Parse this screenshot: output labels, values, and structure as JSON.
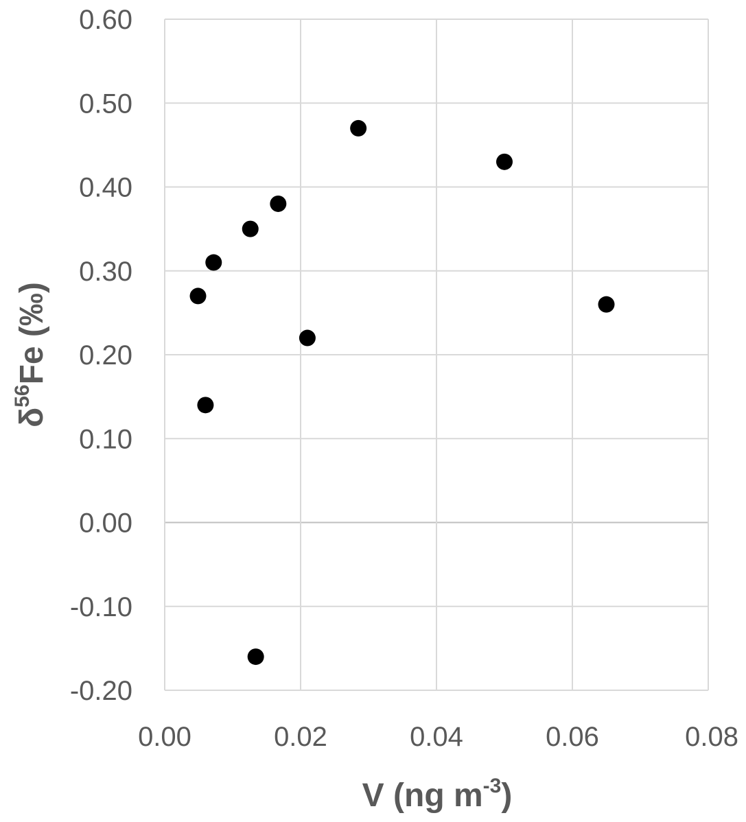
{
  "chart_data": {
    "type": "scatter",
    "title": "",
    "xlabel": "V (ng m-3)",
    "xlabel_parts": {
      "main": "V (ng m",
      "superscript": "-3",
      "tail": ")"
    },
    "ylabel": "δ56Fe (‰)",
    "ylabel_parts": {
      "main": "δ",
      "superscript": "56",
      "tail": "Fe (‰)"
    },
    "xlim": [
      0,
      0.08
    ],
    "ylim": [
      -0.2,
      0.6
    ],
    "xticks": [
      0.0,
      0.02,
      0.04,
      0.06,
      0.08
    ],
    "xtick_labels": [
      "0.00",
      "0.02",
      "0.04",
      "0.06",
      "0.08"
    ],
    "yticks": [
      -0.2,
      -0.1,
      0.0,
      0.1,
      0.2,
      0.3,
      0.4,
      0.5,
      0.6
    ],
    "ytick_labels": [
      "-0.20",
      "-0.10",
      "0.00",
      "0.10",
      "0.20",
      "0.30",
      "0.40",
      "0.50",
      "0.60"
    ],
    "grid": true,
    "legend": "none",
    "marker_color": "#000000",
    "grid_color": "#d9d9d9",
    "zero_line_color": "#bfbfbf",
    "text_color": "#595959",
    "series": [
      {
        "points": [
          {
            "x": 0.0049,
            "y": 0.27
          },
          {
            "x": 0.006,
            "y": 0.14
          },
          {
            "x": 0.0072,
            "y": 0.31
          },
          {
            "x": 0.0126,
            "y": 0.35
          },
          {
            "x": 0.0134,
            "y": -0.16
          },
          {
            "x": 0.0167,
            "y": 0.38
          },
          {
            "x": 0.021,
            "y": 0.22
          },
          {
            "x": 0.0285,
            "y": 0.47
          },
          {
            "x": 0.05,
            "y": 0.43
          },
          {
            "x": 0.065,
            "y": 0.26
          }
        ]
      }
    ]
  }
}
